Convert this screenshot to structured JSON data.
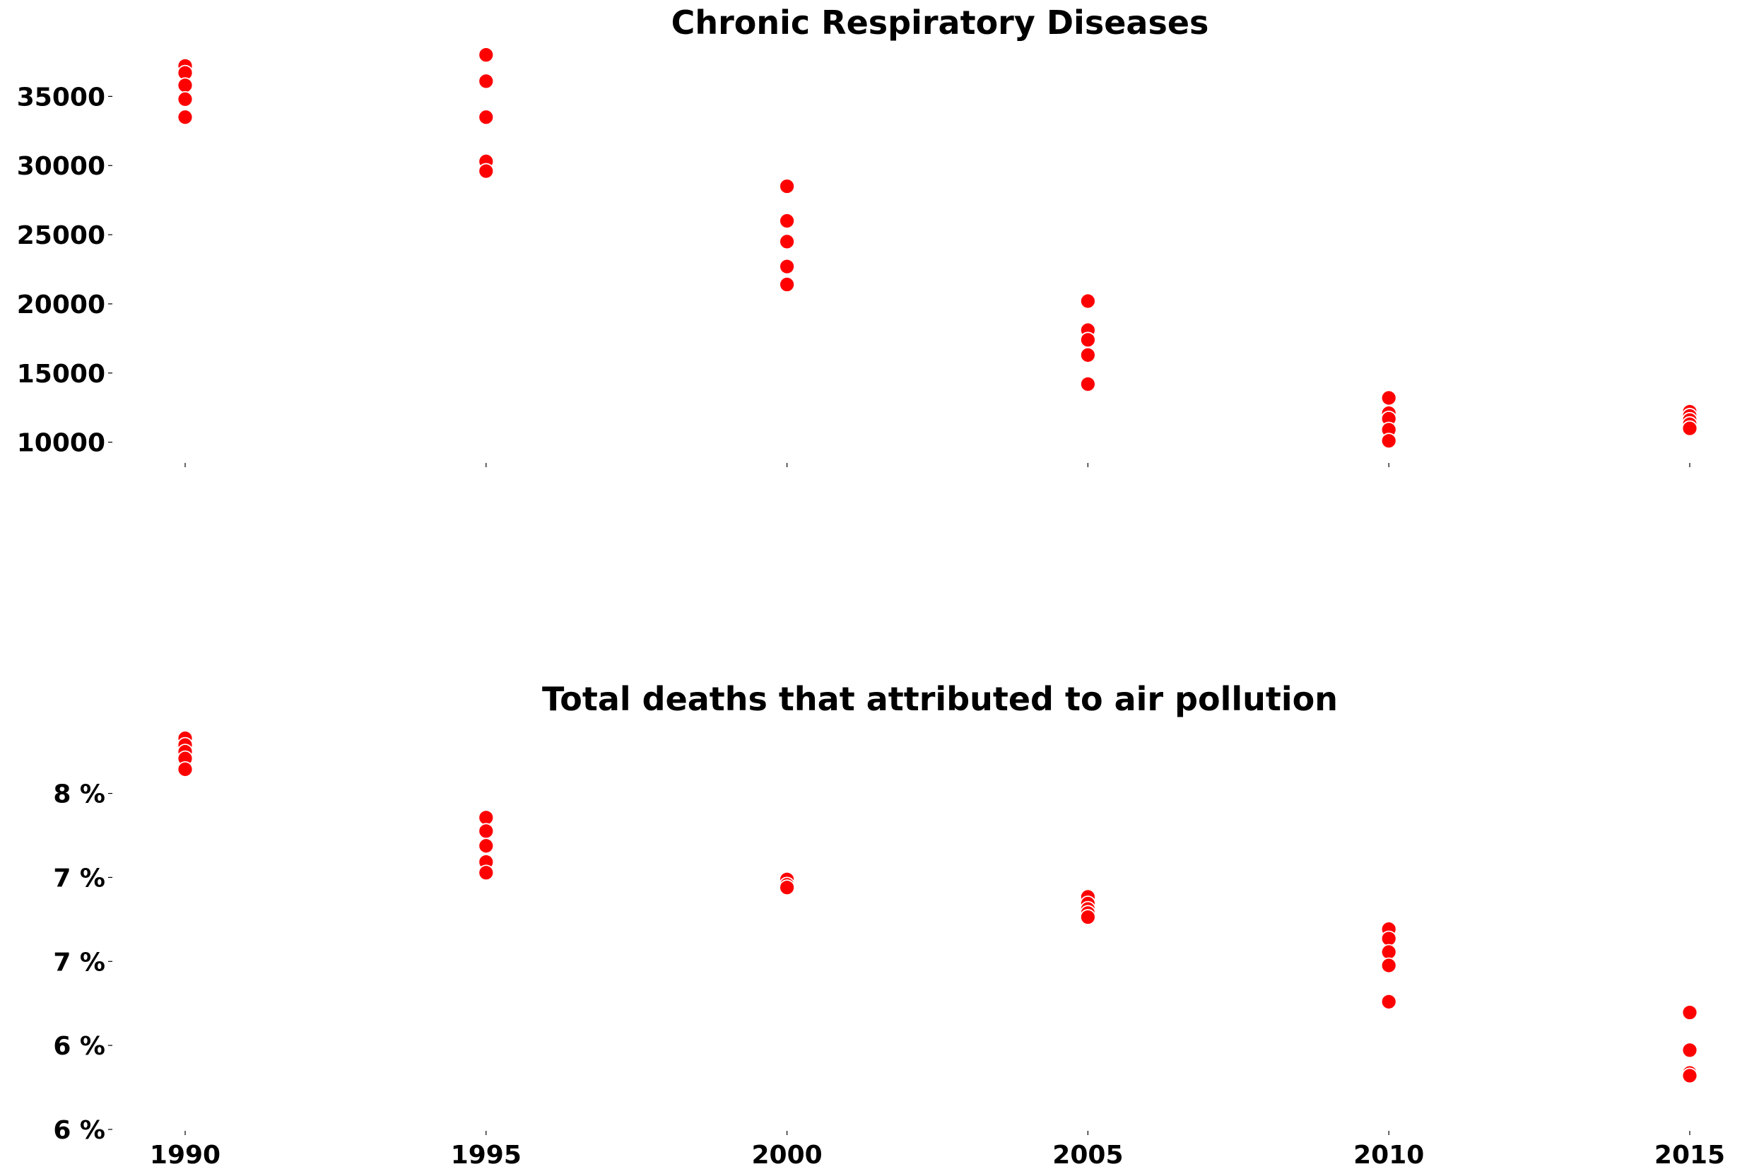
{
  "chart_data": [
    {
      "type": "scatter",
      "title": "Chronic Respiratory Diseases",
      "xlabel": "",
      "ylabel": "",
      "marker_color": "#ff0000",
      "grid": false,
      "x_ticks": [
        "1990",
        "1995",
        "2000",
        "2005",
        "2010",
        "2015"
      ],
      "y_ticks": [
        "10000",
        "15000",
        "20000",
        "25000",
        "30000",
        "35000"
      ],
      "ylim": [
        8500,
        38800
      ],
      "points": [
        {
          "x": 1990,
          "y": 37200
        },
        {
          "x": 1990,
          "y": 36700
        },
        {
          "x": 1990,
          "y": 35800
        },
        {
          "x": 1990,
          "y": 34800
        },
        {
          "x": 1990,
          "y": 33500
        },
        {
          "x": 1995,
          "y": 38000
        },
        {
          "x": 1995,
          "y": 36100
        },
        {
          "x": 1995,
          "y": 33500
        },
        {
          "x": 1995,
          "y": 30300
        },
        {
          "x": 1995,
          "y": 29600
        },
        {
          "x": 2000,
          "y": 28500
        },
        {
          "x": 2000,
          "y": 26000
        },
        {
          "x": 2000,
          "y": 24500
        },
        {
          "x": 2000,
          "y": 22700
        },
        {
          "x": 2000,
          "y": 21400
        },
        {
          "x": 2005,
          "y": 20200
        },
        {
          "x": 2005,
          "y": 18100
        },
        {
          "x": 2005,
          "y": 17400
        },
        {
          "x": 2005,
          "y": 16300
        },
        {
          "x": 2005,
          "y": 14200
        },
        {
          "x": 2010,
          "y": 13200
        },
        {
          "x": 2010,
          "y": 12100
        },
        {
          "x": 2010,
          "y": 11700
        },
        {
          "x": 2010,
          "y": 10900
        },
        {
          "x": 2010,
          "y": 10100
        },
        {
          "x": 2015,
          "y": 12200
        },
        {
          "x": 2015,
          "y": 11900
        },
        {
          "x": 2015,
          "y": 11600
        },
        {
          "x": 2015,
          "y": 11300
        },
        {
          "x": 2015,
          "y": 11000
        }
      ]
    },
    {
      "type": "scatter",
      "title": "Total deaths that attributed to air pollution",
      "xlabel": "",
      "ylabel": "",
      "marker_color": "#ff0000",
      "grid": false,
      "x_ticks": [
        "1990",
        "1995",
        "2000",
        "2005",
        "2010",
        "2015"
      ],
      "y_ticks": [
        "6 %",
        "6 %",
        "7 %",
        "7 %",
        "8 %"
      ],
      "ylim": [
        5.5,
        8.55
      ],
      "points": [
        {
          "x": 1990,
          "y": 8.41
        },
        {
          "x": 1990,
          "y": 8.36
        },
        {
          "x": 1990,
          "y": 8.31
        },
        {
          "x": 1990,
          "y": 8.26
        },
        {
          "x": 1990,
          "y": 8.18
        },
        {
          "x": 1995,
          "y": 7.82
        },
        {
          "x": 1995,
          "y": 7.72
        },
        {
          "x": 1995,
          "y": 7.61
        },
        {
          "x": 1995,
          "y": 7.49
        },
        {
          "x": 1995,
          "y": 7.41
        },
        {
          "x": 2000,
          "y": 7.36
        },
        {
          "x": 2000,
          "y": 7.32
        },
        {
          "x": 2000,
          "y": 7.3
        },
        {
          "x": 2005,
          "y": 7.23
        },
        {
          "x": 2005,
          "y": 7.18
        },
        {
          "x": 2005,
          "y": 7.14
        },
        {
          "x": 2005,
          "y": 7.11
        },
        {
          "x": 2005,
          "y": 7.08
        },
        {
          "x": 2010,
          "y": 6.99
        },
        {
          "x": 2010,
          "y": 6.92
        },
        {
          "x": 2010,
          "y": 6.82
        },
        {
          "x": 2010,
          "y": 6.72
        },
        {
          "x": 2010,
          "y": 6.45
        },
        {
          "x": 2015,
          "y": 6.37
        },
        {
          "x": 2015,
          "y": 6.09
        },
        {
          "x": 2015,
          "y": 5.92
        },
        {
          "x": 2015,
          "y": 5.9
        }
      ]
    }
  ]
}
